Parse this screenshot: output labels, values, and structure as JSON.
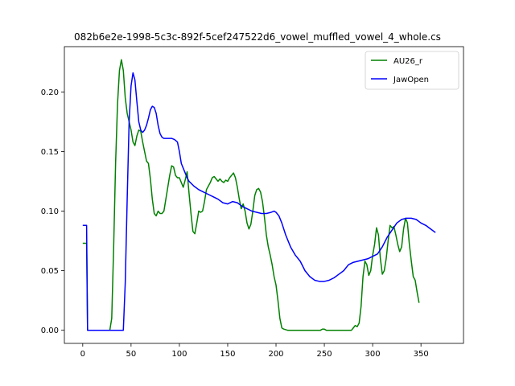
{
  "chart_data": {
    "type": "line",
    "title": "082b6e2e-1998-5c3c-892f-5cef247522d6_vowel_muffled_vowel_4_whole.cs",
    "xlabel": "",
    "ylabel": "",
    "xlim": [
      -19,
      394
    ],
    "ylim": [
      -0.011,
      0.238
    ],
    "xticks": [
      0,
      50,
      100,
      150,
      200,
      250,
      300,
      350
    ],
    "yticks": [
      0.0,
      0.05,
      0.1,
      0.15,
      0.2
    ],
    "xtick_labels": [
      "0",
      "50",
      "100",
      "150",
      "200",
      "250",
      "300",
      "350"
    ],
    "ytick_labels": [
      "0.00",
      "0.05",
      "0.10",
      "0.15",
      "0.20"
    ],
    "grid": false,
    "legend_position": "top-right",
    "series": [
      {
        "name": "AU26_r",
        "color": "#008000",
        "points": [
          [
            0,
            0.073
          ],
          [
            2,
            0.073
          ],
          [
            4,
            0.073
          ],
          [
            5,
            0.0
          ],
          [
            10,
            0.0
          ],
          [
            20,
            0.0
          ],
          [
            28,
            0.0
          ],
          [
            30,
            0.01
          ],
          [
            32,
            0.07
          ],
          [
            34,
            0.14
          ],
          [
            36,
            0.19
          ],
          [
            38,
            0.218
          ],
          [
            40,
            0.227
          ],
          [
            42,
            0.218
          ],
          [
            44,
            0.195
          ],
          [
            46,
            0.182
          ],
          [
            48,
            0.175
          ],
          [
            50,
            0.168
          ],
          [
            52,
            0.158
          ],
          [
            54,
            0.155
          ],
          [
            56,
            0.163
          ],
          [
            58,
            0.168
          ],
          [
            60,
            0.167
          ],
          [
            62,
            0.158
          ],
          [
            64,
            0.15
          ],
          [
            66,
            0.142
          ],
          [
            68,
            0.14
          ],
          [
            70,
            0.127
          ],
          [
            72,
            0.11
          ],
          [
            74,
            0.098
          ],
          [
            76,
            0.096
          ],
          [
            78,
            0.1
          ],
          [
            80,
            0.098
          ],
          [
            82,
            0.098
          ],
          [
            84,
            0.1
          ],
          [
            86,
            0.11
          ],
          [
            88,
            0.12
          ],
          [
            90,
            0.13
          ],
          [
            92,
            0.138
          ],
          [
            94,
            0.137
          ],
          [
            96,
            0.13
          ],
          [
            98,
            0.128
          ],
          [
            100,
            0.128
          ],
          [
            102,
            0.124
          ],
          [
            104,
            0.12
          ],
          [
            106,
            0.126
          ],
          [
            108,
            0.133
          ],
          [
            110,
            0.115
          ],
          [
            112,
            0.098
          ],
          [
            114,
            0.083
          ],
          [
            116,
            0.081
          ],
          [
            118,
            0.09
          ],
          [
            120,
            0.1
          ],
          [
            122,
            0.099
          ],
          [
            124,
            0.1
          ],
          [
            126,
            0.108
          ],
          [
            128,
            0.118
          ],
          [
            130,
            0.121
          ],
          [
            132,
            0.124
          ],
          [
            134,
            0.128
          ],
          [
            136,
            0.129
          ],
          [
            138,
            0.127
          ],
          [
            140,
            0.125
          ],
          [
            142,
            0.127
          ],
          [
            144,
            0.125
          ],
          [
            146,
            0.124
          ],
          [
            148,
            0.126
          ],
          [
            150,
            0.125
          ],
          [
            152,
            0.128
          ],
          [
            154,
            0.13
          ],
          [
            156,
            0.132
          ],
          [
            158,
            0.128
          ],
          [
            160,
            0.12
          ],
          [
            162,
            0.11
          ],
          [
            164,
            0.102
          ],
          [
            166,
            0.106
          ],
          [
            168,
            0.1
          ],
          [
            170,
            0.09
          ],
          [
            172,
            0.085
          ],
          [
            174,
            0.089
          ],
          [
            176,
            0.1
          ],
          [
            178,
            0.113
          ],
          [
            180,
            0.118
          ],
          [
            182,
            0.119
          ],
          [
            184,
            0.116
          ],
          [
            186,
            0.108
          ],
          [
            188,
            0.095
          ],
          [
            190,
            0.08
          ],
          [
            192,
            0.07
          ],
          [
            194,
            0.063
          ],
          [
            196,
            0.055
          ],
          [
            198,
            0.045
          ],
          [
            200,
            0.038
          ],
          [
            202,
            0.025
          ],
          [
            204,
            0.01
          ],
          [
            206,
            0.002
          ],
          [
            208,
            0.001
          ],
          [
            212,
            0.0
          ],
          [
            220,
            0.0
          ],
          [
            230,
            0.0
          ],
          [
            240,
            0.0
          ],
          [
            246,
            0.0
          ],
          [
            248,
            0.001
          ],
          [
            250,
            0.001
          ],
          [
            252,
            0.0
          ],
          [
            260,
            0.0
          ],
          [
            270,
            0.0
          ],
          [
            278,
            0.0
          ],
          [
            280,
            0.002
          ],
          [
            282,
            0.004
          ],
          [
            284,
            0.003
          ],
          [
            286,
            0.006
          ],
          [
            288,
            0.02
          ],
          [
            290,
            0.045
          ],
          [
            292,
            0.058
          ],
          [
            294,
            0.055
          ],
          [
            296,
            0.046
          ],
          [
            298,
            0.05
          ],
          [
            300,
            0.063
          ],
          [
            302,
            0.072
          ],
          [
            304,
            0.086
          ],
          [
            306,
            0.08
          ],
          [
            308,
            0.06
          ],
          [
            310,
            0.047
          ],
          [
            312,
            0.05
          ],
          [
            314,
            0.06
          ],
          [
            316,
            0.075
          ],
          [
            318,
            0.088
          ],
          [
            320,
            0.086
          ],
          [
            322,
            0.087
          ],
          [
            324,
            0.08
          ],
          [
            326,
            0.072
          ],
          [
            328,
            0.066
          ],
          [
            330,
            0.07
          ],
          [
            332,
            0.085
          ],
          [
            334,
            0.094
          ],
          [
            336,
            0.09
          ],
          [
            338,
            0.072
          ],
          [
            340,
            0.058
          ],
          [
            342,
            0.045
          ],
          [
            344,
            0.042
          ],
          [
            346,
            0.032
          ],
          [
            348,
            0.023
          ]
        ]
      },
      {
        "name": "JawOpen",
        "color": "#0000ff",
        "points": [
          [
            0,
            0.088
          ],
          [
            2,
            0.088
          ],
          [
            4,
            0.088
          ],
          [
            5,
            0.0
          ],
          [
            10,
            0.0
          ],
          [
            20,
            0.0
          ],
          [
            30,
            0.0
          ],
          [
            38,
            0.0
          ],
          [
            42,
            0.0
          ],
          [
            44,
            0.04
          ],
          [
            46,
            0.11
          ],
          [
            48,
            0.175
          ],
          [
            50,
            0.205
          ],
          [
            52,
            0.216
          ],
          [
            54,
            0.21
          ],
          [
            56,
            0.192
          ],
          [
            58,
            0.175
          ],
          [
            60,
            0.168
          ],
          [
            62,
            0.166
          ],
          [
            64,
            0.168
          ],
          [
            66,
            0.172
          ],
          [
            68,
            0.178
          ],
          [
            70,
            0.185
          ],
          [
            72,
            0.188
          ],
          [
            74,
            0.187
          ],
          [
            76,
            0.182
          ],
          [
            78,
            0.172
          ],
          [
            80,
            0.165
          ],
          [
            82,
            0.162
          ],
          [
            84,
            0.161
          ],
          [
            88,
            0.161
          ],
          [
            92,
            0.161
          ],
          [
            95,
            0.16
          ],
          [
            98,
            0.158
          ],
          [
            100,
            0.15
          ],
          [
            102,
            0.14
          ],
          [
            104,
            0.136
          ],
          [
            106,
            0.132
          ],
          [
            108,
            0.128
          ],
          [
            110,
            0.125
          ],
          [
            115,
            0.121
          ],
          [
            120,
            0.118
          ],
          [
            125,
            0.116
          ],
          [
            130,
            0.114
          ],
          [
            135,
            0.112
          ],
          [
            140,
            0.11
          ],
          [
            145,
            0.107
          ],
          [
            150,
            0.106
          ],
          [
            155,
            0.108
          ],
          [
            160,
            0.107
          ],
          [
            165,
            0.104
          ],
          [
            170,
            0.102
          ],
          [
            175,
            0.1
          ],
          [
            180,
            0.099
          ],
          [
            185,
            0.098
          ],
          [
            190,
            0.098
          ],
          [
            195,
            0.099
          ],
          [
            198,
            0.1
          ],
          [
            200,
            0.099
          ],
          [
            203,
            0.096
          ],
          [
            206,
            0.09
          ],
          [
            210,
            0.08
          ],
          [
            215,
            0.07
          ],
          [
            220,
            0.063
          ],
          [
            225,
            0.058
          ],
          [
            230,
            0.05
          ],
          [
            235,
            0.045
          ],
          [
            240,
            0.042
          ],
          [
            245,
            0.041
          ],
          [
            250,
            0.041
          ],
          [
            255,
            0.042
          ],
          [
            260,
            0.044
          ],
          [
            265,
            0.047
          ],
          [
            270,
            0.05
          ],
          [
            275,
            0.055
          ],
          [
            280,
            0.057
          ],
          [
            285,
            0.058
          ],
          [
            290,
            0.059
          ],
          [
            295,
            0.06
          ],
          [
            300,
            0.062
          ],
          [
            305,
            0.064
          ],
          [
            310,
            0.07
          ],
          [
            315,
            0.078
          ],
          [
            320,
            0.084
          ],
          [
            325,
            0.09
          ],
          [
            330,
            0.093
          ],
          [
            335,
            0.094
          ],
          [
            340,
            0.094
          ],
          [
            345,
            0.093
          ],
          [
            350,
            0.09
          ],
          [
            355,
            0.088
          ],
          [
            360,
            0.085
          ],
          [
            365,
            0.082
          ]
        ]
      }
    ]
  }
}
